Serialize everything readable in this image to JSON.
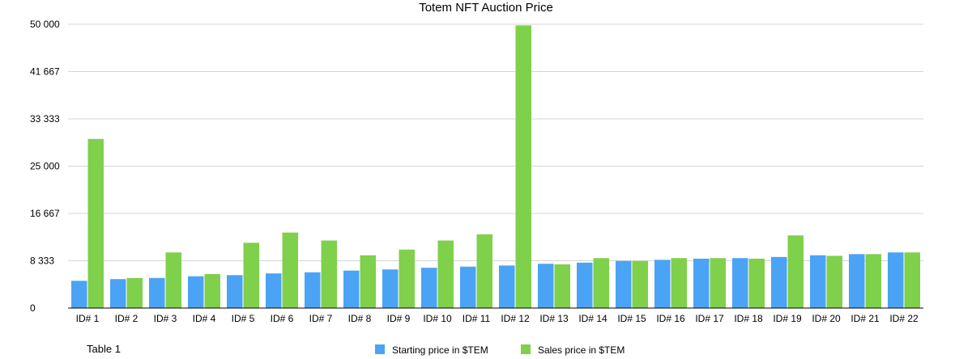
{
  "chart_data": {
    "type": "bar",
    "title": "Totem NFT Auction Price",
    "xlabel": "",
    "ylabel": "",
    "ylim": [
      0,
      50000
    ],
    "yticks": [
      0,
      8333,
      16667,
      25000,
      33333,
      41667,
      50000
    ],
    "ytick_labels": [
      "0",
      "8 333",
      "16 667",
      "25 000",
      "33 333",
      "41 667",
      "50 000"
    ],
    "grid": true,
    "legend_position": "bottom",
    "categories": [
      "ID# 1",
      "ID# 2",
      "ID# 3",
      "ID# 4",
      "ID# 5",
      "ID# 6",
      "ID# 7",
      "ID# 8",
      "ID# 9",
      "ID# 10",
      "ID# 11",
      "ID# 12",
      "ID# 13",
      "ID# 14",
      "ID# 15",
      "ID# 16",
      "ID# 17",
      "ID# 18",
      "ID# 19",
      "ID# 20",
      "ID# 21",
      "ID# 22"
    ],
    "series": [
      {
        "name": "Starting price in $TEM",
        "color": "#4ba3f5",
        "values": [
          4800,
          5100,
          5300,
          5600,
          5800,
          6100,
          6300,
          6600,
          6800,
          7100,
          7300,
          7500,
          7800,
          8000,
          8300,
          8500,
          8700,
          8800,
          9000,
          9300,
          9500,
          9800
        ]
      },
      {
        "name": "Sales price in $TEM",
        "color": "#7fd04b",
        "values": [
          29800,
          5300,
          9800,
          6000,
          11500,
          13300,
          11900,
          9300,
          10300,
          11900,
          13000,
          49800,
          7700,
          8800,
          8300,
          8800,
          8800,
          8700,
          12800,
          9200,
          9500,
          9800
        ]
      }
    ]
  },
  "footer": {
    "table_label": "Table 1"
  }
}
